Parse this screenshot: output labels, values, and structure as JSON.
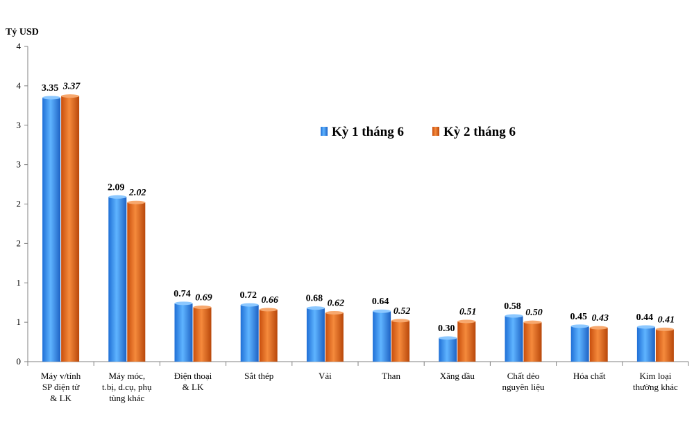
{
  "chart_data": {
    "type": "bar",
    "title": "",
    "ylabel": "Tỷ USD",
    "xlabel": "",
    "ylim": [
      0,
      4
    ],
    "yticks": [
      0,
      0.5,
      1,
      1.5,
      2,
      2.5,
      3,
      3.5,
      4
    ],
    "ytick_labels": [
      "0",
      "1",
      "1",
      "2",
      "2",
      "3",
      "3",
      "4",
      "4"
    ],
    "legend_position": "top-right",
    "categories": [
      [
        "Máy v/tính",
        "SP điện tử",
        "& LK"
      ],
      [
        "Máy móc,",
        "t.bị, d.cụ, phụ",
        "tùng khác"
      ],
      [
        "Điện thoại",
        "& LK"
      ],
      [
        "Sắt thép"
      ],
      [
        "Vải"
      ],
      [
        "Than"
      ],
      [
        "Xăng dầu"
      ],
      [
        "Chất dẻo",
        "nguyên liệu"
      ],
      [
        "Hóa chất"
      ],
      [
        "Kim loại",
        "thường khác"
      ]
    ],
    "series": [
      {
        "name": "Kỳ 1 tháng 6",
        "color": "#3399ff",
        "values": [
          3.35,
          2.09,
          0.74,
          0.72,
          0.68,
          0.64,
          0.3,
          0.58,
          0.45,
          0.44
        ],
        "value_labels": [
          "3.35",
          "2.09",
          "0.74",
          "0.72",
          "0.68",
          "0.64",
          "0.30",
          "0.58",
          "0.45",
          "0.44"
        ]
      },
      {
        "name": "Kỳ 2 tháng 6",
        "color": "#e8681a",
        "values": [
          3.37,
          2.02,
          0.69,
          0.66,
          0.62,
          0.52,
          0.51,
          0.5,
          0.43,
          0.41
        ],
        "value_labels": [
          "3.37",
          "2.02",
          "0.69",
          "0.66",
          "0.62",
          "0.52",
          "0.51",
          "0.50",
          "0.43",
          "0.41"
        ]
      }
    ]
  }
}
